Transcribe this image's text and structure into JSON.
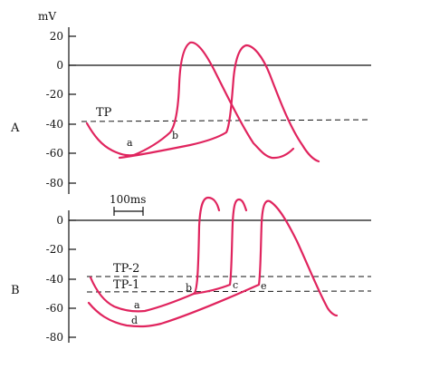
{
  "unit_label": "mV",
  "panel_a": {
    "label": "A",
    "y_ticks": [
      "20",
      "0",
      "-20",
      "-40",
      "-60",
      "-80"
    ],
    "threshold_label": "TP",
    "point_labels": [
      "a",
      "b"
    ]
  },
  "panel_b": {
    "label": "B",
    "y_ticks": [
      "0",
      "-20",
      "-40",
      "-60",
      "-80"
    ],
    "threshold_labels": [
      "TP-2",
      "TP-1"
    ],
    "point_labels": [
      "a",
      "b",
      "c",
      "d",
      "e"
    ],
    "scale_bar_label": "100ms"
  },
  "colors": {
    "trace": "#e0245e",
    "ink": "#111111"
  }
}
